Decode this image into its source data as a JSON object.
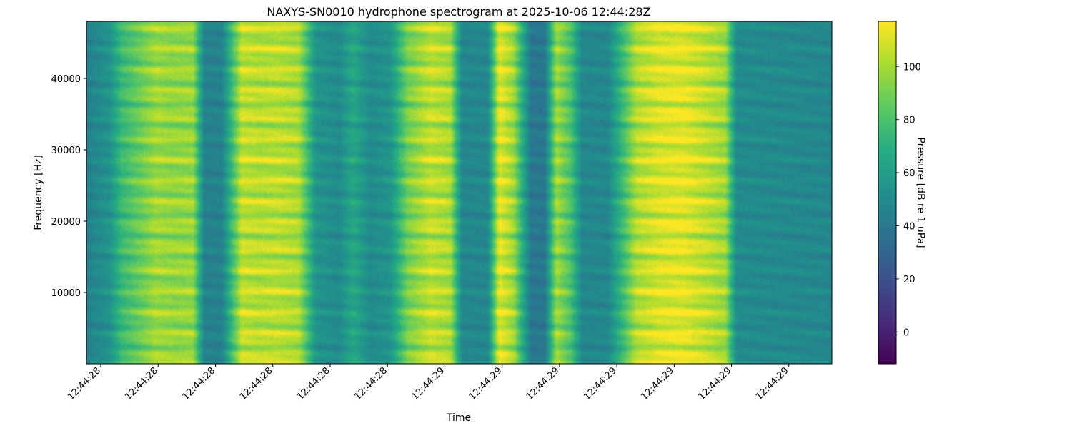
{
  "chart_data": {
    "type": "heatmap",
    "title": "NAXYS-SN0010 hydrophone spectrogram at 2025-10-06 12:44:28Z",
    "xlabel": "Time",
    "ylabel": "Frequency [Hz]",
    "colorbar_label": "Pressure [dB re 1 uPa]",
    "colormap": "viridis",
    "ylim": [
      0,
      48000
    ],
    "yticks": [
      10000,
      20000,
      30000,
      40000
    ],
    "xtick_labels": [
      "12:44:28",
      "12:44:28",
      "12:44:28",
      "12:44:28",
      "12:44:28",
      "12:44:28",
      "12:44:29",
      "12:44:29",
      "12:44:29",
      "12:44:29",
      "12:44:29",
      "12:44:29",
      "12:44:29"
    ],
    "time_range": [
      0,
      1.3
    ],
    "xtick_times": [
      0.025,
      0.125,
      0.225,
      0.325,
      0.425,
      0.525,
      0.625,
      0.725,
      0.825,
      0.925,
      1.025,
      1.125,
      1.225
    ],
    "color_range": [
      -12,
      117
    ],
    "colorbar_ticks": [
      0,
      20,
      40,
      60,
      80,
      100
    ],
    "grid": false,
    "time_profile": {
      "t": [
        0.0,
        0.04,
        0.06,
        0.12,
        0.15,
        0.185,
        0.205,
        0.235,
        0.27,
        0.3,
        0.335,
        0.37,
        0.4,
        0.44,
        0.465,
        0.495,
        0.53,
        0.56,
        0.6,
        0.635,
        0.655,
        0.7,
        0.72,
        0.745,
        0.775,
        0.8,
        0.82,
        0.845,
        0.865,
        0.91,
        0.96,
        1.0,
        1.04,
        1.08,
        1.115,
        1.135,
        1.3
      ],
      "db": [
        45,
        55,
        75,
        98,
        96,
        97,
        45,
        45,
        105,
        103,
        104,
        100,
        55,
        50,
        65,
        50,
        55,
        90,
        105,
        100,
        48,
        48,
        112,
        98,
        40,
        40,
        98,
        80,
        48,
        48,
        102,
        110,
        112,
        105,
        98,
        50,
        48
      ]
    }
  }
}
